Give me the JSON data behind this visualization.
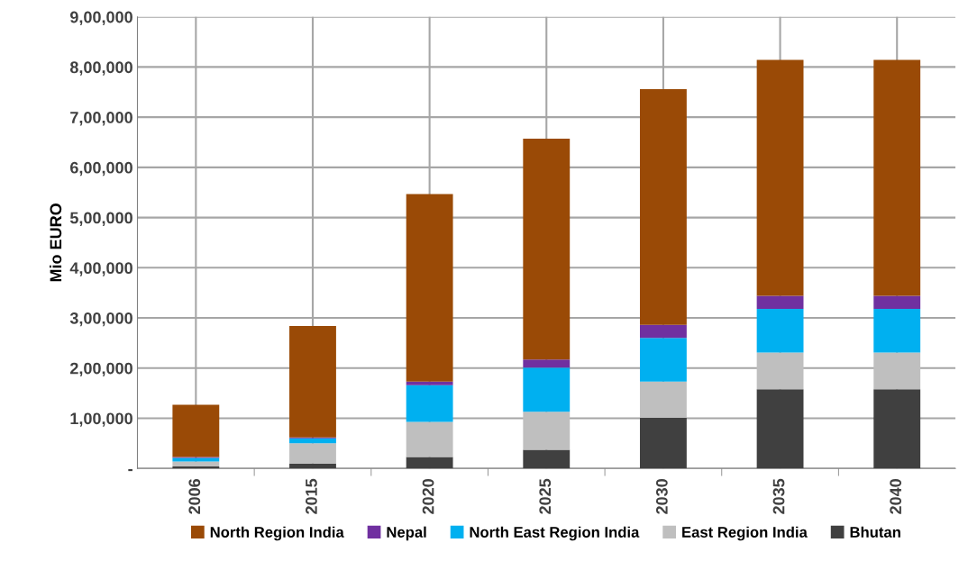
{
  "chart_data": {
    "type": "bar",
    "stacked": true,
    "ylabel": "Mio EURO",
    "categories": [
      "2006",
      "2015",
      "2020",
      "2025",
      "2030",
      "2035",
      "2040"
    ],
    "series": [
      {
        "name": "Bhutan",
        "color": "#404040",
        "values": [
          4000,
          10000,
          23000,
          37000,
          101000,
          158000,
          158000
        ]
      },
      {
        "name": "East Region India",
        "color": "#bfbfbf",
        "values": [
          10000,
          40000,
          70000,
          76000,
          72000,
          73000,
          73000
        ]
      },
      {
        "name": "North East Region India",
        "color": "#00b0f0",
        "values": [
          7000,
          10000,
          73000,
          88000,
          87000,
          87000,
          87000
        ]
      },
      {
        "name": "Nepal",
        "color": "#7030a0",
        "values": [
          2000,
          2000,
          7000,
          16000,
          26000,
          26000,
          26000
        ]
      },
      {
        "name": "North Region India",
        "color": "#9a4a06",
        "values": [
          104000,
          222000,
          374000,
          440000,
          470000,
          470000,
          470000
        ]
      }
    ],
    "ylim": [
      0,
      900000
    ],
    "yticks": [
      {
        "value": 0,
        "label": "-"
      },
      {
        "value": 100000,
        "label": "1,00,000"
      },
      {
        "value": 200000,
        "label": "2,00,000"
      },
      {
        "value": 300000,
        "label": "3,00,000"
      },
      {
        "value": 400000,
        "label": "4,00,000"
      },
      {
        "value": 500000,
        "label": "5,00,000"
      },
      {
        "value": 600000,
        "label": "6,00,000"
      },
      {
        "value": 700000,
        "label": "7,00,000"
      },
      {
        "value": 800000,
        "label": "8,00,000"
      },
      {
        "value": 900000,
        "label": "9,00,000"
      }
    ],
    "grid": true,
    "legend": "bottom"
  }
}
